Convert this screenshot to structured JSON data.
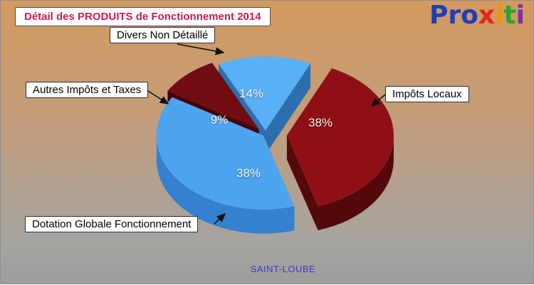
{
  "page": {
    "title": "Détail des PRODUITS de Fonctionnement 2014",
    "title_color": "#d0175a",
    "footer": "SAINT-LOUBE",
    "footer_color": "#3c3ccd"
  },
  "logo": {
    "text": "Proxiti",
    "letters": [
      {
        "ch": "P",
        "color": "#1d3eb8"
      },
      {
        "ch": "r",
        "color": "#1d3eb8"
      },
      {
        "ch": "o",
        "color": "#1d3eb8"
      },
      {
        "ch": "x",
        "color": "#e02525"
      },
      {
        "ch": "i",
        "color": "#f29400"
      },
      {
        "ch": "t",
        "color": "#2da32d"
      },
      {
        "ch": "i",
        "color": "#7d2fae"
      }
    ]
  },
  "chart_data": {
    "type": "pie",
    "style": "3d-exploded",
    "title": "Détail des PRODUITS de Fonctionnement 2014",
    "unit": "percent",
    "start_angle": -26,
    "legend_position": "callouts",
    "slices": [
      {
        "label": "Divers Non Détaillé",
        "value": 14,
        "pct_label": "14%",
        "color": "#59b0f4",
        "side_color": "#2d6fae",
        "explode": 8
      },
      {
        "label": "Impôts Locaux",
        "value": 38,
        "pct_label": "38%",
        "color": "#8e1016",
        "side_color": "#54080b",
        "explode": 30
      },
      {
        "label": "Dotation Globale Fonctionnement",
        "value": 38,
        "pct_label": "38%",
        "color": "#4da4ef",
        "side_color": "#3381cf",
        "explode": 4
      },
      {
        "label": "Autres Impôts et Taxes",
        "value": 9,
        "pct_label": "9%",
        "color": "#700c12",
        "side_color": "#440509",
        "explode": 14
      }
    ]
  }
}
